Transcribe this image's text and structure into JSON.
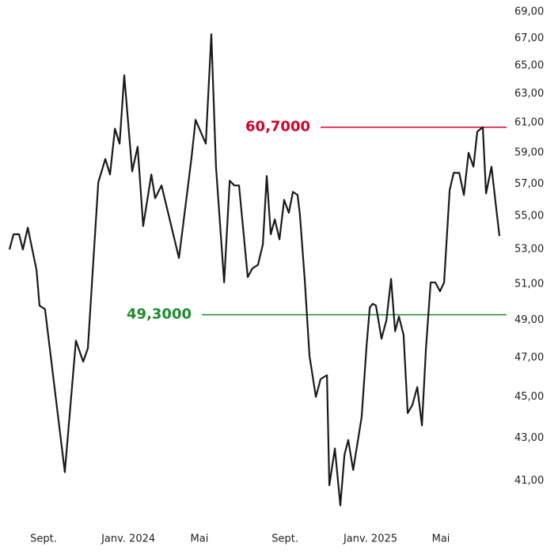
{
  "chart_data": {
    "type": "line",
    "log_y": true,
    "x": [
      -1.6,
      -1.41,
      -1.15,
      -0.97,
      -0.74,
      -0.33,
      -0.19,
      0.07,
      1.0,
      1.52,
      1.86,
      2.08,
      2.57,
      2.9,
      3.12,
      3.35,
      3.57,
      3.79,
      4.16,
      4.42,
      4.68,
      5.06,
      5.24,
      5.54,
      6.36,
      6.73,
      6.95,
      7.14,
      7.62,
      7.88,
      8.1,
      8.48,
      8.74,
      8.96,
      9.18,
      9.59,
      9.81,
      10.07,
      10.3,
      10.48,
      10.67,
      10.86,
      11.08,
      11.3,
      11.52,
      11.71,
      11.93,
      12.04,
      12.27,
      12.49,
      12.79,
      13.01,
      13.31,
      13.42,
      13.68,
      13.94,
      14.13,
      14.31,
      14.54,
      14.94,
      15.17,
      15.32,
      15.46,
      15.61,
      15.87,
      16.1,
      16.32,
      16.51,
      16.69,
      16.91,
      17.1,
      17.32,
      17.55,
      17.77,
      17.96,
      18.18,
      18.4,
      18.62,
      18.81,
      19.07,
      19.26,
      19.52,
      19.74,
      19.96,
      20.19,
      20.37,
      20.63,
      20.78,
      21.04,
      21.23,
      21.41
    ],
    "series": [
      {
        "color": "#1a1a1a",
        "values": [
          53.0,
          53.9,
          53.9,
          53.0,
          54.3,
          51.8,
          49.8,
          49.6,
          41.4,
          47.9,
          46.8,
          47.5,
          57.1,
          58.6,
          57.6,
          60.6,
          59.6,
          64.3,
          57.8,
          59.4,
          54.4,
          57.6,
          56.1,
          56.9,
          52.5,
          56.3,
          58.7,
          61.2,
          59.6,
          67.3,
          58.1,
          51.1,
          57.2,
          56.9,
          56.9,
          51.4,
          51.9,
          52.1,
          53.3,
          57.5,
          53.9,
          54.8,
          53.6,
          56.0,
          55.2,
          56.5,
          56.3,
          55.1,
          51.2,
          47.1,
          45.0,
          45.9,
          46.1,
          40.8,
          42.5,
          39.9,
          42.2,
          42.9,
          41.5,
          44.0,
          47.6,
          49.7,
          49.9,
          49.8,
          48.0,
          49.0,
          51.3,
          48.4,
          49.2,
          48.2,
          44.2,
          44.6,
          45.5,
          43.6,
          47.5,
          51.1,
          51.1,
          50.6,
          51.1,
          56.6,
          57.7,
          57.7,
          56.3,
          59.0,
          58.1,
          60.4,
          60.7,
          56.4,
          58.1,
          55.8,
          53.8
        ]
      }
    ],
    "xlim": [
      -1.6,
      21.41
    ],
    "xticks": [
      {
        "value": 0,
        "label": "Sept."
      },
      {
        "value": 3.98,
        "label": "Janv. 2024"
      },
      {
        "value": 7.32,
        "label": "Mai"
      },
      {
        "value": 11.34,
        "label": "Sept."
      },
      {
        "value": 15.35,
        "label": "Janv. 2025"
      },
      {
        "value": 18.66,
        "label": "Mai"
      }
    ],
    "ylim": [
      39.5,
      69.9
    ],
    "yticks": [
      {
        "value": 41,
        "label": "41,00"
      },
      {
        "value": 43,
        "label": "43,00"
      },
      {
        "value": 45,
        "label": "45,00"
      },
      {
        "value": 47,
        "label": "47,00"
      },
      {
        "value": 49,
        "label": "49,00"
      },
      {
        "value": 51,
        "label": "51,00"
      },
      {
        "value": 53,
        "label": "53,00"
      },
      {
        "value": 55,
        "label": "55,00"
      },
      {
        "value": 57,
        "label": "57,00"
      },
      {
        "value": 59,
        "label": "59,00"
      },
      {
        "value": 61,
        "label": "61,00"
      },
      {
        "value": 63,
        "label": "63,00"
      },
      {
        "value": 65,
        "label": "65,00"
      },
      {
        "value": 67,
        "label": "67,00"
      },
      {
        "value": 69,
        "label": "69,00"
      }
    ],
    "reference_lines": [
      {
        "value": 60.7,
        "label": "60,7000",
        "color": "#d5002b"
      },
      {
        "value": 49.3,
        "label": "49,3000",
        "color": "#1e8c2e"
      }
    ]
  }
}
